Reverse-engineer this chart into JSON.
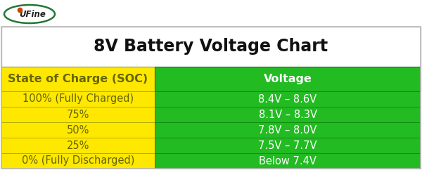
{
  "title": "8V Battery Voltage Chart",
  "title_fontsize": 17,
  "title_fontweight": "bold",
  "col1_header": "State of Charge (SOC)",
  "col2_header": "Voltage",
  "header_fontsize": 11.5,
  "header_fontweight": "bold",
  "rows": [
    {
      "soc": "100% (Fully Charged)",
      "voltage": "8.4V – 8.6V"
    },
    {
      "soc": "75%",
      "voltage": "8.1V – 8.3V"
    },
    {
      "soc": "50%",
      "voltage": "7.8V – 8.0V"
    },
    {
      "soc": "25%",
      "voltage": "7.5V – 7.7V"
    },
    {
      "soc": "0% (Fully Discharged)",
      "voltage": "Below 7.4V"
    }
  ],
  "row_fontsize": 10.5,
  "yellow_color": "#FFE800",
  "green_color": "#22BB22",
  "white": "#FFFFFF",
  "border_color": "#BBBBBB",
  "text_color_soc": "#666600",
  "text_color_voltage": "#FFFFFF",
  "text_color_title": "#111111",
  "logo_text": "UFine",
  "logo_color": "#227733",
  "logo_flame_color": "#CC4400",
  "fig_bg": "#FFFFFF"
}
